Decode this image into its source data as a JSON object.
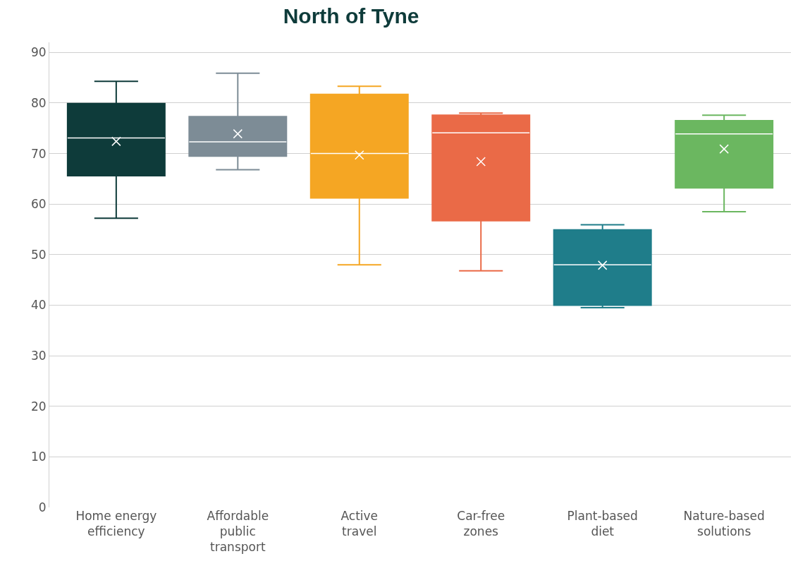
{
  "chart_data": {
    "type": "box",
    "title": "North of Tyne",
    "categories": [
      "Home energy efficiency",
      "Affordable public transport",
      "Active travel",
      "Car-free zones",
      "Plant-based diet",
      "Nature-based solutions"
    ],
    "colors": [
      "#0e3b3a",
      "#7d8c96",
      "#f5a623",
      "#ea6a47",
      "#1f7d8a",
      "#6bb760"
    ],
    "boxes": [
      {
        "low": 57.2,
        "q1": 65.6,
        "median": 73.1,
        "q3": 79.9,
        "high": 84.3,
        "mean": 72.4
      },
      {
        "low": 66.8,
        "q1": 69.5,
        "median": 72.3,
        "q3": 77.3,
        "high": 85.9,
        "mean": 73.9
      },
      {
        "low": 48,
        "q1": 61.2,
        "median": 70,
        "q3": 81.7,
        "high": 83.3,
        "mean": 69.7
      },
      {
        "low": 46.8,
        "q1": 56.7,
        "median": 74.1,
        "q3": 77.6,
        "high": 78,
        "mean": 68.4
      },
      {
        "low": 39.5,
        "q1": 40,
        "median": 48,
        "q3": 54.9,
        "high": 55.9,
        "mean": 47.9
      },
      {
        "low": 58.5,
        "q1": 63.2,
        "median": 73.9,
        "q3": 76.5,
        "high": 77.6,
        "mean": 70.9
      }
    ],
    "ylim": [
      0,
      92
    ],
    "yticks": [
      0,
      10,
      20,
      30,
      40,
      50,
      60,
      70,
      80,
      90
    ],
    "grid": "y"
  }
}
